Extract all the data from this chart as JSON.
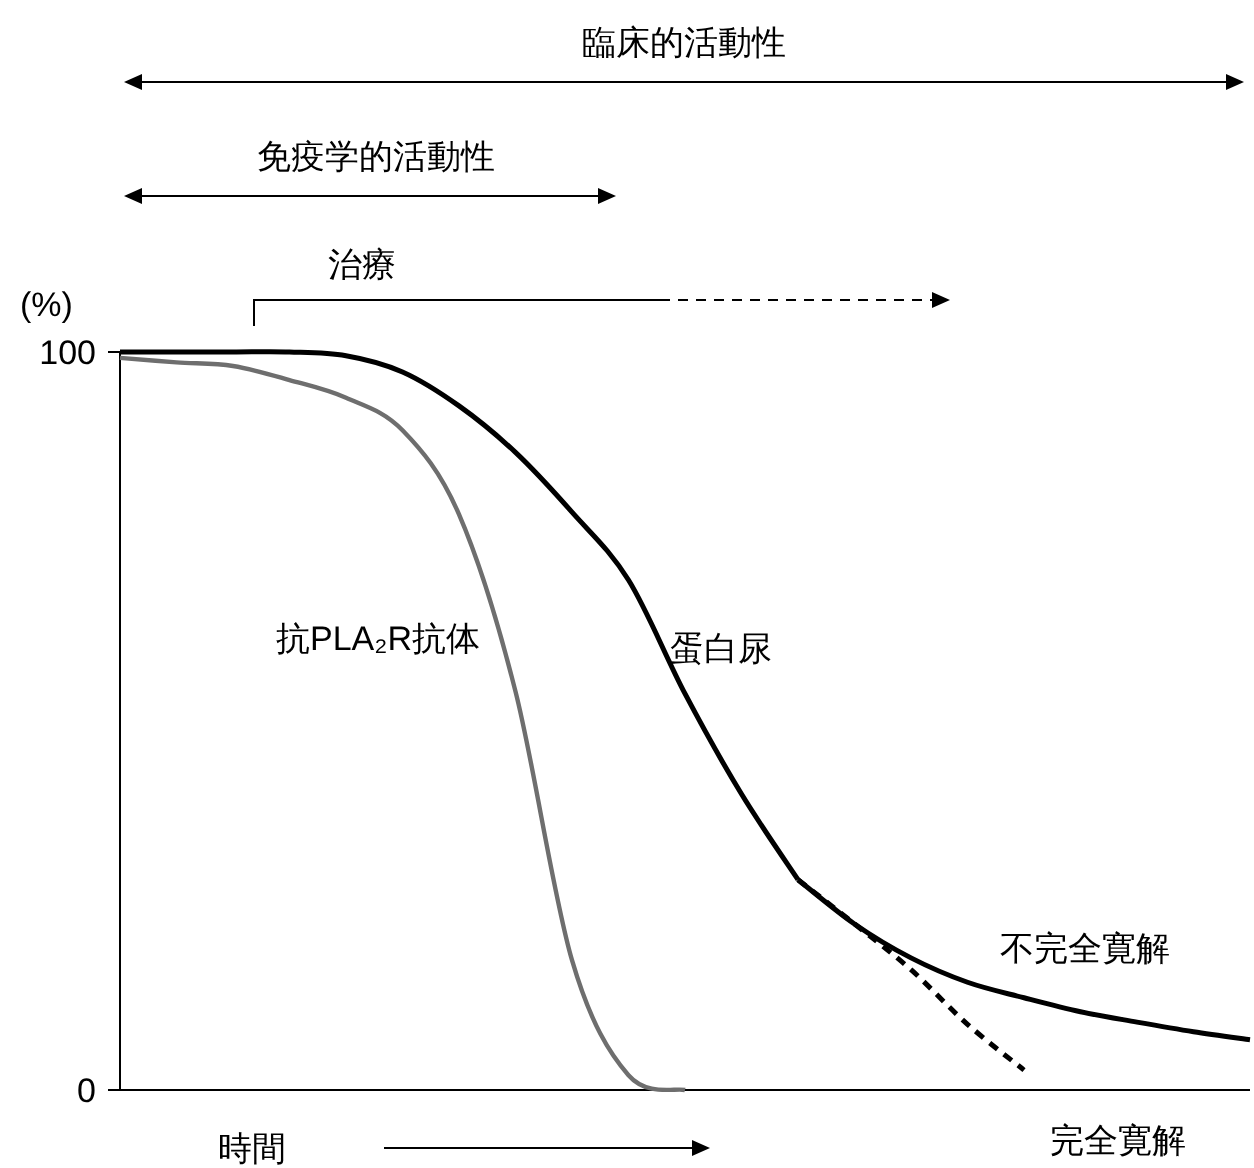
{
  "chart_data": {
    "type": "line",
    "ylabel": "(%)",
    "ylim": [
      0,
      100
    ],
    "yticks": [
      0,
      100
    ],
    "legend": false,
    "grid": false,
    "line_style": "solid",
    "marker": "none",
    "categories": [
      null,
      null,
      null,
      null,
      null,
      null,
      null,
      null,
      null,
      null,
      null,
      null,
      null,
      null,
      null,
      null,
      null,
      null,
      null,
      null,
      null
    ],
    "series": [
      {
        "name": "抗PLA₂R抗体",
        "color": "#6e6e6e",
        "values": [
          99.2,
          98.6,
          98.1,
          96.2,
          93.8,
          89.4,
          78,
          54,
          17.6,
          2,
          0,
          null,
          null,
          null,
          null,
          null,
          null,
          null,
          null,
          null,
          null
        ]
      },
      {
        "name": "蛋白尿",
        "color": "#000000",
        "values": [
          100,
          100,
          100,
          100,
          99.5,
          97.3,
          92.7,
          86.4,
          78.3,
          69.1,
          53.7,
          40.1,
          28.5,
          null,
          null,
          null,
          null,
          null,
          null,
          null,
          null
        ]
      },
      {
        "name": "不完全寛解",
        "color": "#000000",
        "values": [
          null,
          null,
          null,
          null,
          null,
          null,
          null,
          null,
          null,
          null,
          null,
          null,
          28.5,
          22.5,
          17.9,
          14.6,
          12.5,
          10.6,
          9.2,
          7.9,
          6.8
        ]
      },
      {
        "name": "完全寛解",
        "color": "#000000",
        "line_style": "dashed",
        "values": [
          null,
          null,
          null,
          null,
          null,
          null,
          null,
          null,
          null,
          null,
          null,
          null,
          28.5,
          22.5,
          16.3,
          8.9,
          2.7,
          null,
          null,
          null,
          null
        ]
      }
    ],
    "annotations": [
      "臨床的活動性",
      "免疫学的活動性",
      "治療",
      "時間"
    ]
  }
}
